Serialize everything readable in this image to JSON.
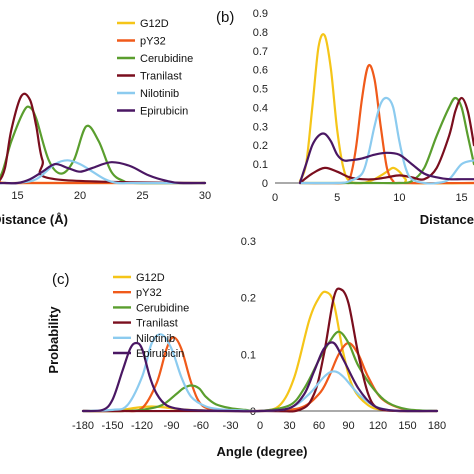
{
  "chart_data": [
    {
      "panel": "a",
      "type": "line",
      "label": "",
      "xlabel": "Distance (Å)",
      "ylabel": "",
      "xlim": [
        10,
        30
      ],
      "ylim": [
        0,
        0.9
      ],
      "xticks": [
        "15",
        "20",
        "25",
        "30"
      ],
      "yticks": [],
      "legend": {
        "placement": "top-right"
      },
      "series": [
        {
          "name": "G12D",
          "color": "#f5c518",
          "x": [
            10,
            10.5,
            11,
            11.5,
            12,
            12.5,
            13,
            14,
            15,
            20,
            30
          ],
          "y": [
            0.28,
            0.26,
            0.22,
            0.15,
            0.08,
            0.03,
            0.01,
            0,
            0,
            0,
            0
          ]
        },
        {
          "name": "pY32",
          "color": "#f05a1a",
          "x": [
            10,
            11,
            11.5,
            12,
            12.5,
            13,
            13.5,
            14,
            16,
            30
          ],
          "y": [
            0.6,
            0.55,
            0.45,
            0.3,
            0.15,
            0.05,
            0.01,
            0,
            0,
            0
          ]
        },
        {
          "name": "Cerubidine",
          "color": "#5a9e2e",
          "x": [
            10,
            12,
            13.5,
            14.5,
            15.5,
            16,
            16.5,
            17.5,
            18.5,
            19.5,
            20.5,
            21.5,
            22.5,
            23.5,
            24.5,
            30
          ],
          "y": [
            0,
            0,
            0.02,
            0.22,
            0.38,
            0.4,
            0.34,
            0.12,
            0.05,
            0.12,
            0.3,
            0.22,
            0.06,
            0.01,
            0,
            0
          ]
        },
        {
          "name": "Tranilast",
          "color": "#7a0e1e",
          "x": [
            10,
            11,
            11.5,
            12,
            12.5,
            13,
            13.5,
            14,
            14.5,
            15.3,
            16,
            16.5,
            17,
            18,
            30
          ],
          "y": [
            0.66,
            0.55,
            0.42,
            0.25,
            0.1,
            0.03,
            0.01,
            0.08,
            0.28,
            0.46,
            0.44,
            0.3,
            0.12,
            0.02,
            0
          ]
        },
        {
          "name": "Nilotinib",
          "color": "#8ccbef",
          "x": [
            10,
            10.5,
            11,
            11.5,
            12,
            12.5,
            13,
            13.5,
            14,
            15,
            16.5,
            18,
            19,
            20,
            21,
            22,
            23,
            24,
            25,
            26,
            27,
            30
          ],
          "y": [
            0.62,
            0.5,
            0.38,
            0.25,
            0.12,
            0.05,
            0.02,
            0,
            0,
            0,
            0.02,
            0.1,
            0.12,
            0.1,
            0.06,
            0.02,
            0,
            0,
            0,
            0,
            0,
            0
          ]
        },
        {
          "name": "Epirubicin",
          "color": "#4a1763",
          "x": [
            10,
            11,
            11.5,
            12,
            12.5,
            13,
            14,
            15,
            16,
            17,
            18,
            19,
            20,
            21,
            22.5,
            24,
            25.5,
            27,
            28,
            30
          ],
          "y": [
            0.2,
            0.12,
            0.06,
            0.02,
            0.01,
            0,
            0,
            0,
            0.02,
            0.06,
            0.1,
            0.08,
            0.06,
            0.08,
            0.11,
            0.09,
            0.04,
            0.01,
            0,
            0
          ]
        }
      ]
    },
    {
      "panel": "b",
      "type": "line",
      "label": "(b)",
      "xlabel": "Distance",
      "ylabel": "",
      "xlim": [
        0,
        16
      ],
      "ylim": [
        0,
        0.9
      ],
      "xticks": [
        "0",
        "5",
        "10",
        "15"
      ],
      "yticks": [
        "0",
        "0.1",
        "0.2",
        "0.3",
        "0.4",
        "0.5",
        "0.6",
        "0.7",
        "0.8",
        "0.9"
      ],
      "series": [
        {
          "name": "G12D",
          "color": "#f5c518",
          "x": [
            2,
            2.5,
            3,
            3.5,
            4,
            4.5,
            5,
            5.5,
            6,
            7,
            8,
            9,
            9.5,
            10,
            10.5,
            11,
            16
          ],
          "y": [
            0.01,
            0.1,
            0.4,
            0.72,
            0.78,
            0.6,
            0.28,
            0.08,
            0.01,
            0,
            0.02,
            0.06,
            0.08,
            0.06,
            0.02,
            0,
            0
          ]
        },
        {
          "name": "pY32",
          "color": "#f05a1a",
          "x": [
            2,
            5.5,
            6,
            6.5,
            7,
            7.5,
            8,
            8.5,
            9,
            9.5,
            10,
            16
          ],
          "y": [
            0,
            0,
            0.02,
            0.18,
            0.45,
            0.62,
            0.55,
            0.3,
            0.08,
            0.01,
            0,
            0
          ]
        },
        {
          "name": "Cerubidine",
          "color": "#5a9e2e",
          "x": [
            2,
            4,
            6,
            8,
            10,
            11,
            12,
            13,
            14,
            14.5,
            15,
            15.5,
            16
          ],
          "y": [
            0,
            0,
            0,
            0,
            0,
            0.01,
            0.08,
            0.25,
            0.4,
            0.45,
            0.4,
            0.25,
            0.1
          ]
        },
        {
          "name": "Tranilast",
          "color": "#7a0e1e",
          "x": [
            2,
            3,
            4,
            5,
            6,
            7,
            8,
            9,
            10,
            11,
            12,
            13,
            14,
            14.5,
            15,
            15.5,
            16
          ],
          "y": [
            0,
            0.05,
            0.08,
            0.06,
            0.03,
            0.02,
            0.02,
            0.03,
            0.04,
            0.03,
            0.02,
            0.08,
            0.25,
            0.38,
            0.45,
            0.38,
            0.2
          ]
        },
        {
          "name": "Nilotinib",
          "color": "#8ccbef",
          "x": [
            2,
            5,
            6,
            7,
            7.5,
            8,
            8.5,
            9,
            9.5,
            10,
            10.5,
            11,
            12,
            13,
            14,
            15,
            16
          ],
          "y": [
            0,
            0,
            0.01,
            0.05,
            0.15,
            0.3,
            0.42,
            0.45,
            0.4,
            0.22,
            0.08,
            0.02,
            0,
            0,
            0.02,
            0.1,
            0.12
          ]
        },
        {
          "name": "Epirubicin",
          "color": "#4a1763",
          "x": [
            2,
            2.5,
            3,
            3.5,
            4,
            4.5,
            5,
            5.5,
            6,
            7,
            8,
            9,
            10,
            11,
            12,
            13,
            14,
            15,
            16
          ],
          "y": [
            0,
            0.1,
            0.2,
            0.25,
            0.26,
            0.22,
            0.15,
            0.12,
            0.12,
            0.13,
            0.15,
            0.16,
            0.15,
            0.1,
            0.05,
            0.03,
            0.02,
            0.02,
            0.02
          ]
        }
      ]
    },
    {
      "panel": "c",
      "type": "line",
      "label": "(c)",
      "xlabel": "Angle (degree)",
      "ylabel": "Probability",
      "xlim": [
        -180,
        180
      ],
      "ylim": [
        0,
        0.3
      ],
      "xticks": [
        "-180",
        "-150",
        "-120",
        "-90",
        "-60",
        "-30",
        "0",
        "30",
        "60",
        "90",
        "120",
        "150",
        "180"
      ],
      "yticks": [
        "0",
        "0.1",
        "0.2",
        "0.3"
      ],
      "legend": {
        "placement": "top-left"
      },
      "series": [
        {
          "name": "G12D",
          "color": "#f5c518",
          "x": [
            -180,
            -150,
            -140,
            -125,
            -110,
            -95,
            -80,
            -60,
            -40,
            -20,
            0,
            20,
            35,
            50,
            60,
            67,
            75,
            85,
            95,
            110,
            125,
            150,
            180
          ],
          "y": [
            0,
            0,
            0.002,
            0.006,
            0.008,
            0.006,
            0.003,
            0.001,
            0,
            0,
            0,
            0.01,
            0.06,
            0.16,
            0.2,
            0.21,
            0.19,
            0.1,
            0.04,
            0.01,
            0.002,
            0,
            0
          ]
        },
        {
          "name": "pY32",
          "color": "#f05a1a",
          "x": [
            -180,
            -140,
            -120,
            -105,
            -95,
            -88,
            -80,
            -70,
            -60,
            -45,
            -20,
            0,
            40,
            60,
            70,
            80,
            90,
            100,
            110,
            125,
            150,
            180
          ],
          "y": [
            0,
            0,
            0.005,
            0.05,
            0.11,
            0.13,
            0.11,
            0.05,
            0.012,
            0.002,
            0,
            0,
            0.005,
            0.03,
            0.06,
            0.1,
            0.12,
            0.1,
            0.06,
            0.02,
            0.002,
            0
          ]
        },
        {
          "name": "Cerubidine",
          "color": "#5a9e2e",
          "x": [
            -180,
            -140,
            -120,
            -100,
            -85,
            -78,
            -70,
            -62,
            -55,
            -45,
            -30,
            -15,
            0,
            30,
            45,
            60,
            70,
            80,
            90,
            100,
            115,
            130,
            150,
            180
          ],
          "y": [
            0,
            0,
            0.002,
            0.01,
            0.03,
            0.04,
            0.045,
            0.04,
            0.025,
            0.012,
            0.005,
            0.002,
            0,
            0.01,
            0.04,
            0.09,
            0.12,
            0.14,
            0.12,
            0.08,
            0.04,
            0.015,
            0.003,
            0
          ]
        },
        {
          "name": "Tranilast",
          "color": "#7a0e1e",
          "x": [
            -180,
            0,
            40,
            55,
            65,
            75,
            82,
            90,
            100,
            110,
            120,
            140,
            180
          ],
          "y": [
            0,
            0,
            0.002,
            0.03,
            0.1,
            0.2,
            0.215,
            0.19,
            0.1,
            0.03,
            0.005,
            0,
            0
          ]
        },
        {
          "name": "Nilotinib",
          "color": "#8ccbef",
          "x": [
            -180,
            -150,
            -135,
            -120,
            -110,
            -100,
            -90,
            -80,
            -70,
            -55,
            -40,
            -20,
            0,
            30,
            50,
            65,
            75,
            85,
            100,
            115,
            130,
            150,
            180
          ],
          "y": [
            0,
            0.002,
            0.01,
            0.06,
            0.12,
            0.135,
            0.11,
            0.06,
            0.025,
            0.008,
            0.003,
            0.001,
            0,
            0.005,
            0.03,
            0.06,
            0.07,
            0.06,
            0.03,
            0.01,
            0.002,
            0,
            0
          ]
        },
        {
          "name": "Epirubicin",
          "color": "#4a1763",
          "x": [
            -180,
            -160,
            -150,
            -140,
            -132,
            -126,
            -120,
            -112,
            -105,
            -95,
            -80,
            -60,
            -30,
            0,
            30,
            45,
            55,
            65,
            75,
            85,
            100,
            115,
            130,
            150,
            180
          ],
          "y": [
            0,
            0.002,
            0.02,
            0.07,
            0.11,
            0.12,
            0.11,
            0.06,
            0.03,
            0.01,
            0.003,
            0.001,
            0,
            0,
            0.005,
            0.03,
            0.07,
            0.11,
            0.12,
            0.09,
            0.04,
            0.01,
            0.002,
            0,
            0
          ]
        }
      ]
    }
  ]
}
